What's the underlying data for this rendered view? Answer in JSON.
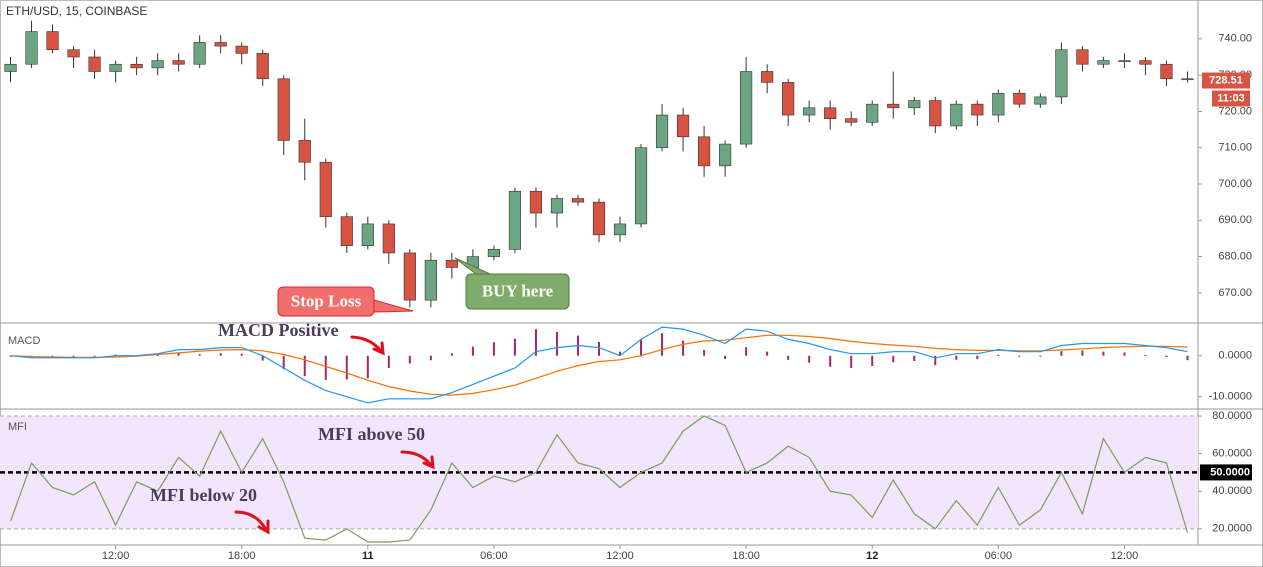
{
  "chart_data": [
    {
      "type": "candlestick",
      "title": "ETH/USD, 15, COINBASE",
      "xlim": [
        -0.5,
        56.5
      ],
      "ylim": [
        661.7,
        750.7
      ],
      "yticks": [
        {
          "value": 670,
          "label": "670.00"
        },
        {
          "value": 680,
          "label": "680.00"
        },
        {
          "value": 690,
          "label": "690.00"
        },
        {
          "value": 700,
          "label": "700.00"
        },
        {
          "value": 710,
          "label": "710.00"
        },
        {
          "value": 720,
          "label": "720.00"
        },
        {
          "value": 730,
          "label": "730.00"
        },
        {
          "value": 740,
          "label": "740.00"
        }
      ],
      "up_color": "#6ba583",
      "down_color": "#d75442",
      "open": [
        731,
        733,
        742,
        737,
        735,
        731,
        733,
        732,
        734,
        733,
        739,
        738,
        736,
        729,
        712,
        706,
        691,
        683,
        689,
        681,
        668,
        679,
        677,
        680,
        682,
        698,
        692,
        696,
        695,
        686,
        689,
        710,
        719,
        713,
        705,
        711,
        731,
        728,
        719,
        721,
        718,
        717,
        722,
        721,
        723,
        716,
        722,
        719,
        725,
        722,
        724,
        737,
        733,
        734,
        734,
        733,
        729
      ],
      "high": [
        735,
        745,
        744,
        738,
        737,
        734,
        735,
        736,
        736,
        741,
        741,
        739,
        737,
        730,
        718,
        707,
        692,
        691,
        690,
        682,
        681,
        681,
        682,
        683,
        699,
        699,
        697,
        697,
        696,
        691,
        711,
        722,
        721,
        716,
        712,
        735,
        733,
        729,
        723,
        723,
        720,
        723,
        731,
        724,
        724,
        723,
        723,
        726,
        726,
        725,
        739,
        738,
        735,
        736,
        735,
        734,
        731
      ],
      "low": [
        728,
        732,
        736,
        732,
        729,
        728,
        730,
        730,
        731,
        732,
        736,
        733,
        727,
        708,
        701,
        688,
        681,
        682,
        678,
        666,
        666,
        674,
        676,
        679,
        681,
        688,
        688,
        694,
        684,
        684,
        688,
        709,
        709,
        702,
        702,
        710,
        725,
        716,
        717,
        715,
        716,
        716,
        718,
        719,
        714,
        715,
        716,
        717,
        721,
        721,
        722,
        731,
        732,
        732,
        730,
        727,
        728
      ],
      "close": [
        733,
        742,
        737,
        735,
        731,
        733,
        732,
        734,
        733,
        739,
        738,
        736,
        729,
        712,
        706,
        691,
        683,
        689,
        681,
        668,
        679,
        677,
        680,
        682,
        698,
        692,
        696,
        695,
        686,
        689,
        710,
        719,
        713,
        705,
        711,
        731,
        728,
        719,
        721,
        718,
        717,
        722,
        721,
        723,
        716,
        722,
        719,
        725,
        722,
        724,
        737,
        733,
        734,
        734,
        733,
        729,
        729
      ],
      "last_price": 728.51,
      "countdown": "11:03",
      "annotations": [
        "Stop Loss",
        "BUY here"
      ]
    },
    {
      "type": "macd",
      "title": "MACD",
      "xlim": [
        -0.5,
        56.5
      ],
      "ylim": [
        -13,
        7.75
      ],
      "yticks": [
        {
          "value": 0,
          "label": "0.0000"
        },
        {
          "value": -10,
          "label": "-10.0000"
        }
      ],
      "series": [
        {
          "name": "MACD",
          "color": "#2196f3",
          "values": [
            0,
            -0.5,
            -0.5,
            -0.5,
            -0.5,
            0,
            0,
            0.5,
            1.5,
            1.5,
            2,
            2,
            0,
            -3,
            -6,
            -8.5,
            -10,
            -11.5,
            -10.5,
            -10.5,
            -10.5,
            -9,
            -7,
            -5,
            -3,
            1,
            2,
            2.5,
            2,
            0,
            4,
            7,
            6.5,
            5,
            3,
            6.5,
            6,
            4,
            3,
            1.5,
            0.5,
            0.5,
            1,
            1,
            -0.5,
            0.5,
            0.5,
            1.5,
            1,
            1,
            2.5,
            3,
            3,
            3,
            2.5,
            2,
            1
          ]
        },
        {
          "name": "Signal",
          "color": "#ff6d00",
          "values": [
            0,
            -0.2,
            -0.3,
            -0.4,
            -0.4,
            -0.3,
            -0.1,
            0.3,
            0.7,
            1.1,
            1.4,
            1.5,
            1.2,
            0.3,
            -1,
            -2.6,
            -4.2,
            -6,
            -7.5,
            -8.6,
            -9.4,
            -9.6,
            -9.2,
            -8.3,
            -7.2,
            -5.5,
            -3.8,
            -2.4,
            -1.4,
            -1,
            0,
            1.5,
            2.8,
            3.6,
            3.8,
            4.4,
            5,
            5,
            4.7,
            4.2,
            3.5,
            3,
            2.6,
            2.3,
            1.8,
            1.5,
            1.3,
            1.3,
            1.2,
            1.2,
            1.4,
            1.7,
            2,
            2.2,
            2.3,
            2.3,
            2.1
          ]
        },
        {
          "name": "Histogram",
          "color": "#a8246b",
          "values": [
            0,
            -0.3,
            -0.2,
            -0.1,
            -0.1,
            0.3,
            0.1,
            0.2,
            0.8,
            0.4,
            0.6,
            0.5,
            -1.2,
            -3.3,
            -5,
            -5.9,
            -5.8,
            -5.5,
            -3,
            -1.9,
            -1.1,
            0.6,
            2.2,
            3.3,
            4.2,
            6.5,
            5.8,
            4.9,
            3.4,
            1,
            4,
            5.5,
            3.7,
            1.4,
            -0.8,
            2.1,
            1,
            -1,
            -1.7,
            -2.7,
            -3,
            -2.5,
            -1.6,
            -1.3,
            -2.3,
            -1,
            -0.8,
            0.2,
            -0.2,
            -0.2,
            1.1,
            1.3,
            1,
            0.8,
            0.2,
            -0.3,
            -1.1
          ]
        }
      ],
      "annotation": "MACD Positive"
    },
    {
      "type": "line",
      "title": "MFI",
      "xlim": [
        -0.5,
        56.5
      ],
      "ylim": [
        11.4,
        83.2
      ],
      "color": "#7a9e58",
      "band": [
        20,
        80
      ],
      "yticks": [
        {
          "value": 20,
          "label": "20.0000"
        },
        {
          "value": 40,
          "label": "40.0000"
        },
        {
          "value": 60,
          "label": "60.0000"
        },
        {
          "value": 80,
          "label": "80.0000"
        }
      ],
      "reference": {
        "value": 50,
        "label": "50.0000"
      },
      "values": [
        24,
        55,
        42,
        38,
        45,
        22,
        45,
        40,
        58,
        48,
        72,
        50,
        68,
        45,
        15,
        14,
        20,
        13,
        13,
        14,
        30,
        55,
        42,
        48,
        45,
        50,
        70,
        55,
        52,
        42,
        50,
        55,
        72,
        80,
        75,
        50,
        55,
        64,
        58,
        40,
        38,
        26,
        46,
        28,
        20,
        35,
        22,
        42,
        22,
        30,
        50,
        28,
        68,
        50,
        58,
        55,
        18
      ],
      "xticks": [
        {
          "value": 5,
          "label": "12:00"
        },
        {
          "value": 11,
          "label": "18:00"
        },
        {
          "value": 17,
          "label": "11"
        },
        {
          "value": 23,
          "label": "06:00"
        },
        {
          "value": 29,
          "label": "12:00"
        },
        {
          "value": 35,
          "label": "18:00"
        },
        {
          "value": 41,
          "label": "12"
        },
        {
          "value": 47,
          "label": "06:00"
        },
        {
          "value": 53,
          "label": "12:00"
        }
      ],
      "annotations": [
        "MFI above 50",
        "MFI below 20"
      ]
    }
  ]
}
